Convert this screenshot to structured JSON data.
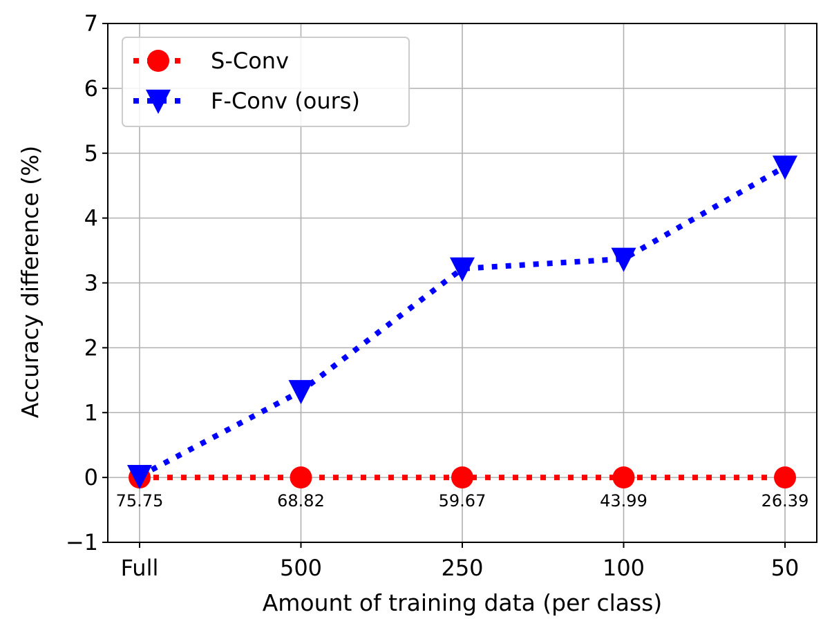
{
  "chart_data": {
    "type": "line",
    "categories": [
      "Full",
      "500",
      "250",
      "100",
      "50"
    ],
    "series": [
      {
        "name": "S-Conv",
        "values": [
          0,
          0,
          0,
          0,
          0
        ],
        "color": "#ff0000",
        "marker": "circle",
        "linestyle": "dotted"
      },
      {
        "name": "F-Conv (ours)",
        "values": [
          0.02,
          1.33,
          3.22,
          3.37,
          4.79
        ],
        "color": "#0000ff",
        "marker": "triangle-down",
        "linestyle": "dotted"
      }
    ],
    "point_labels": [
      "75.75",
      "68.82",
      "59.67",
      "43.99",
      "26.39"
    ],
    "xlabel": "Amount of training data (per class)",
    "ylabel": "Accuracy difference (%)",
    "ylim": [
      -1,
      7
    ],
    "yticks": [
      "−1",
      "0",
      "1",
      "2",
      "3",
      "4",
      "5",
      "6",
      "7"
    ],
    "grid": true,
    "legend_position": "upper-left"
  }
}
